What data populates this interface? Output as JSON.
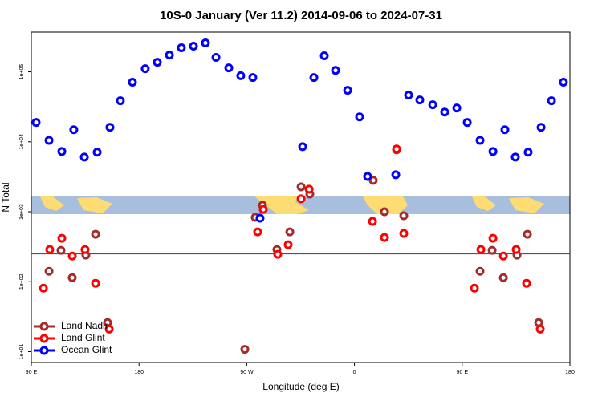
{
  "chart_data": {
    "type": "scatter",
    "title": "10S-0 January (Ver 11.2)   2014-09-06 to 2024-07-31",
    "xlabel": "Longitude (deg E)",
    "ylabel": "N Total",
    "xlim": [
      90,
      540
    ],
    "xticks": [
      {
        "value": 90,
        "label": "90 E"
      },
      180,
      {
        "value": 270,
        "label": "90 W"
      },
      {
        "value": 360,
        "label": "0"
      },
      {
        "value": 450,
        "label": "90 E"
      },
      {
        "value": 540,
        "label": "180"
      }
    ],
    "ylim": [
      7,
      370000
    ],
    "log_y": true,
    "yticks": [
      {
        "value": 10,
        "label": "1e+01"
      },
      {
        "value": 100,
        "label": "1e+02"
      },
      {
        "value": 1000,
        "label": "1e+03"
      },
      {
        "value": 10000,
        "label": "1e+04"
      },
      {
        "value": 100000,
        "label": "1e+05"
      }
    ],
    "reference_line": 250,
    "legend": "bottom-left",
    "series": [
      {
        "name": "Land Nadir",
        "color": "#a52a2a",
        "x": [
          104.8,
          114.8,
          124.2,
          135.6,
          143.7,
          153.7,
          268.4,
          277.1,
          283.2,
          295.2,
          306,
          315.4,
          322.7,
          375.7,
          385.1,
          395.2,
          401.2,
          464.9,
          475,
          484.4,
          495.8,
          504.5,
          513.9
        ],
        "values": [
          141,
          281,
          114,
          240,
          477,
          26,
          10.8,
          831,
          1240,
          288,
          516,
          2270,
          1790,
          2810,
          1000,
          7680,
          877,
          141,
          281,
          114,
          240,
          477,
          26
        ]
      },
      {
        "name": "Land Glint",
        "color": "#ff0000",
        "x": [
          100.1,
          105.4,
          115.5,
          124.2,
          134.9,
          143.7,
          155.1,
          279.1,
          283.8,
          295.9,
          304.6,
          315.4,
          322.1,
          375.1,
          385.1,
          395.2,
          401.2,
          460.2,
          465.6,
          475.7,
          484.4,
          495.1,
          503.8,
          515.2
        ],
        "values": [
          81,
          288,
          418,
          233,
          288,
          95,
          21,
          516,
          1080,
          246,
          338,
          1530,
          2100,
          728,
          429,
          7890,
          490,
          81,
          288,
          418,
          233,
          288,
          95,
          21
        ]
      },
      {
        "name": "Ocean Glint",
        "color": "#0000ff",
        "x": [
          94,
          104.8,
          115.5,
          125.5,
          134.3,
          145,
          155.7,
          164.4,
          174.5,
          185.2,
          195.3,
          205.4,
          215.4,
          225.5,
          235.5,
          244.3,
          255,
          265,
          275.1,
          281.1,
          316.7,
          326.1,
          334.8,
          344.2,
          354.3,
          364.3,
          371,
          394.5,
          405.2,
          414.6,
          425.4,
          435.4,
          445.5,
          454.2,
          464.9,
          475.7,
          485.7,
          494.4,
          505.1,
          515.9,
          524.6,
          534.6
        ],
        "values": [
          18900,
          10500,
          7280,
          14900,
          6050,
          7100,
          16100,
          38600,
          71000,
          111000,
          137000,
          174000,
          221000,
          233000,
          259000,
          161000,
          114000,
          88000,
          83000,
          810,
          8530,
          83000,
          170000,
          105000,
          54400,
          22700,
          3200,
          3380,
          46400,
          39600,
          33800,
          26600,
          30400,
          18900,
          10500,
          7280,
          14900,
          6050,
          7100,
          16100,
          38600,
          71000
        ]
      }
    ]
  }
}
